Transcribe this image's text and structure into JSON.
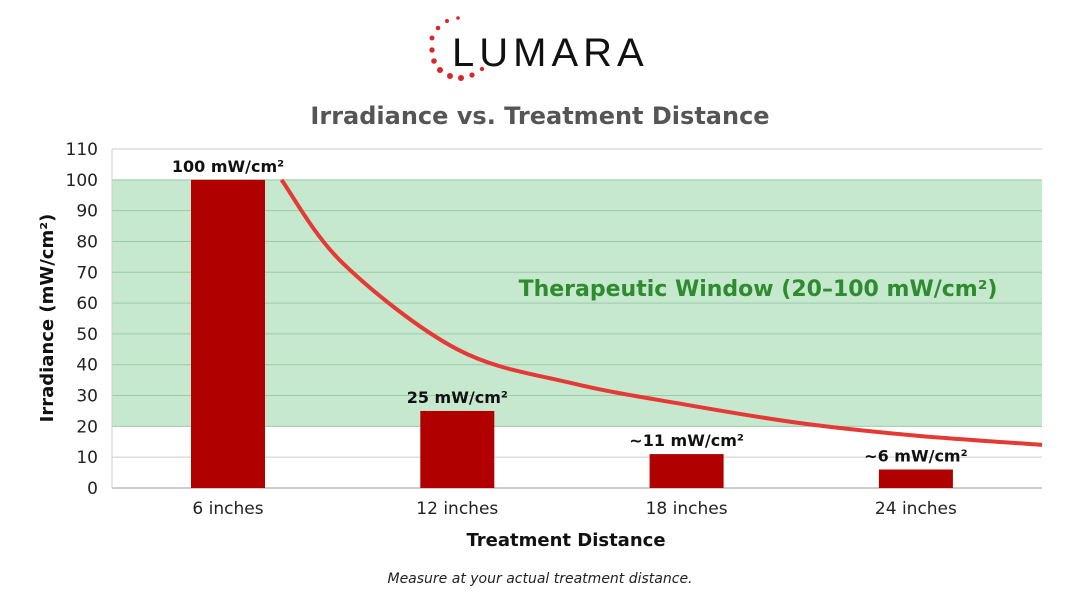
{
  "logo": {
    "text": "LUMARA",
    "dot_color": "#d62828"
  },
  "chart_data": {
    "type": "bar",
    "title": "Irradiance vs. Treatment Distance",
    "xlabel": "Treatment Distance",
    "ylabel": "Irradiance (mW/cm²)",
    "categories": [
      "6 inches",
      "12 inches",
      "18 inches",
      "24 inches"
    ],
    "values": [
      100,
      25,
      11,
      6
    ],
    "data_labels": [
      "100 mW/cm²",
      "25 mW/cm²",
      "~11 mW/cm²",
      "~6 mW/cm²"
    ],
    "ylim": [
      0,
      110
    ],
    "yticks": [
      0,
      10,
      20,
      30,
      40,
      50,
      60,
      70,
      80,
      90,
      100,
      110
    ],
    "grid": true,
    "bar_color": "#b00000",
    "curve": {
      "color": "#e53935",
      "x_inches": [
        7.4,
        9,
        12,
        15,
        18,
        21,
        24,
        27.3
      ],
      "y": [
        100,
        73,
        45,
        34,
        27,
        21,
        17,
        14
      ]
    },
    "band": {
      "from": 20,
      "to": 100,
      "color": "#c6e8cf",
      "label": "Therapeutic Window (20–100 mW/cm²)",
      "label_color": "#2e8b2e"
    },
    "footnote": "Measure at your actual treatment distance."
  }
}
